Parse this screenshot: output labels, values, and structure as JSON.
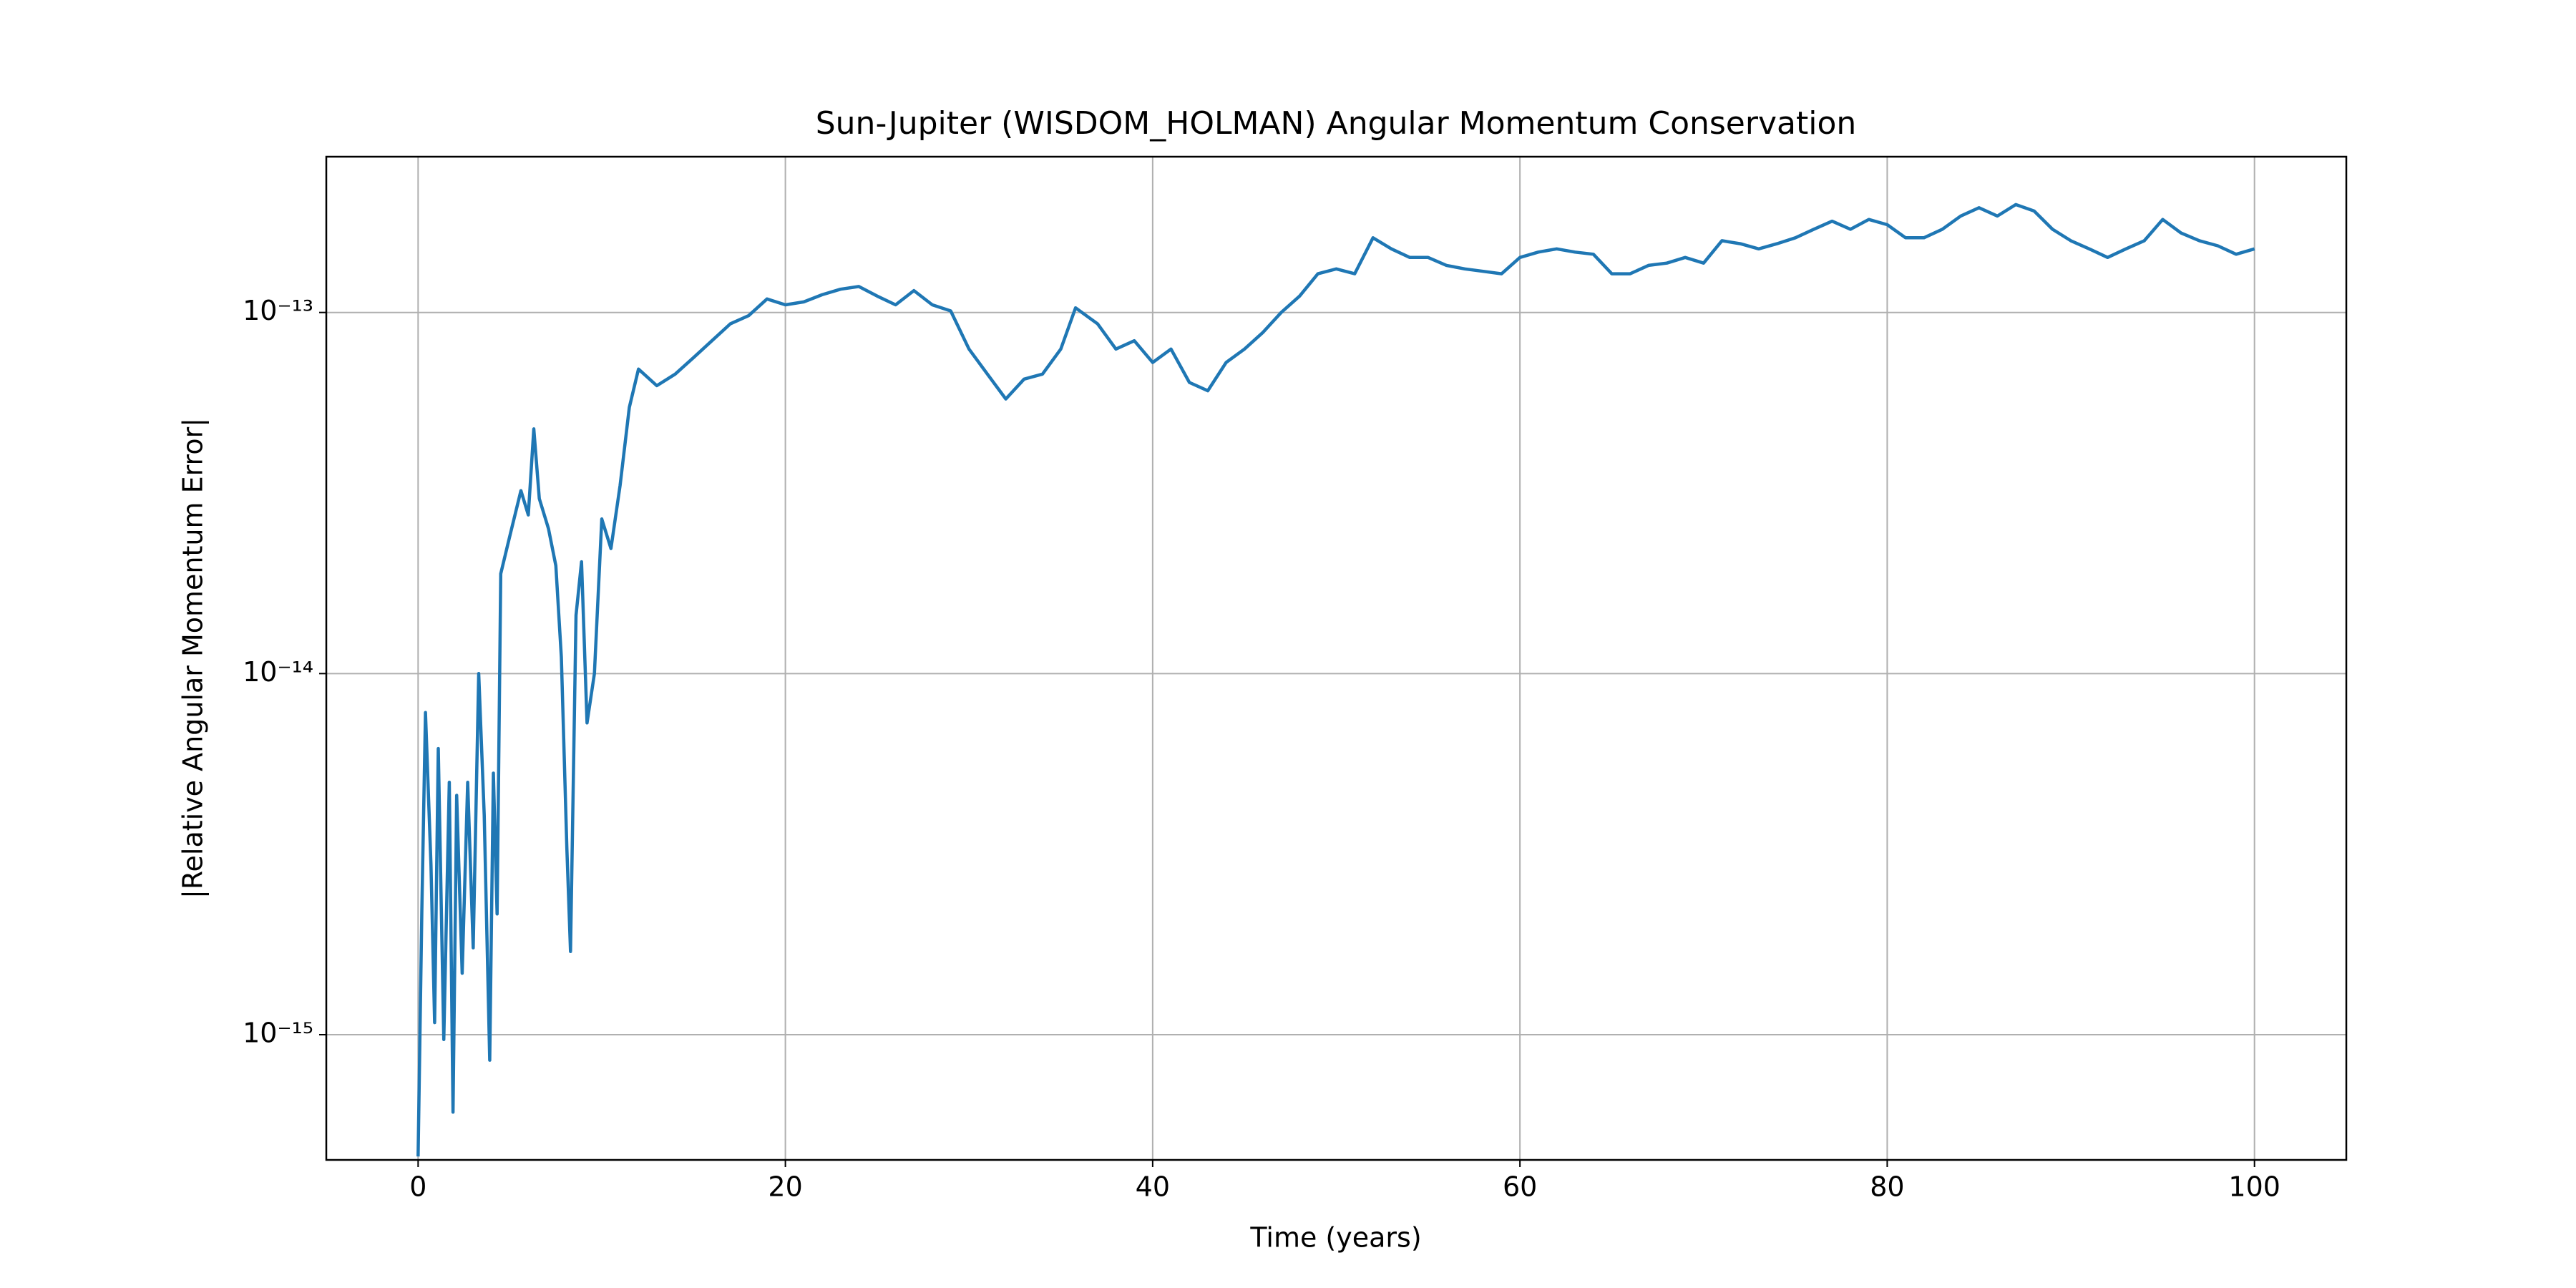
{
  "chart_data": {
    "type": "line",
    "title": "Sun-Jupiter (WISDOM_HOLMAN) Angular Momentum Conservation",
    "x_label": "Time (years)",
    "y_label": "|Relative Angular Momentum Error|",
    "yscale": "log",
    "grid": true,
    "color": "#1f77b4",
    "xlim": [
      -5,
      105
    ],
    "xticks": [
      0,
      20,
      40,
      60,
      80,
      100
    ],
    "ylim": [
      4.5e-16,
      2.7e-13
    ],
    "yticks": [
      {
        "value": 1e-15,
        "label": "10⁻¹⁵"
      },
      {
        "value": 1e-14,
        "label": "10⁻¹⁴"
      },
      {
        "value": 1e-13,
        "label": "10⁻¹³"
      }
    ],
    "x": [
      0,
      0.2,
      0.4,
      0.7,
      0.9,
      1.1,
      1.4,
      1.7,
      1.9,
      2.1,
      2.4,
      2.7,
      3.0,
      3.3,
      3.6,
      3.9,
      4.1,
      4.3,
      4.5,
      5.0,
      5.6,
      6.0,
      6.3,
      6.6,
      7.1,
      7.5,
      7.8,
      8.1,
      8.3,
      8.6,
      8.9,
      9.2,
      9.6,
      10.0,
      10.5,
      11.0,
      11.5,
      12,
      13,
      14,
      15,
      16,
      17,
      18,
      19,
      20,
      21,
      22,
      23,
      24,
      25,
      26,
      27,
      28,
      29,
      30,
      31,
      32,
      33,
      34,
      35,
      35.8,
      37,
      38,
      39,
      40,
      41,
      42,
      43,
      44,
      45,
      46,
      47,
      48,
      49,
      50,
      51,
      52,
      53,
      54,
      55,
      56,
      57,
      58,
      59,
      60,
      61,
      62,
      63,
      64,
      65,
      66,
      67,
      68,
      69,
      70,
      71,
      72,
      73,
      74,
      75,
      76,
      77,
      78,
      79,
      80,
      81,
      82,
      83,
      84,
      85,
      86,
      87,
      88,
      89,
      90,
      91,
      92,
      93,
      94,
      95,
      96,
      97,
      98,
      99,
      100
    ],
    "values": [
      4.6e-16,
      2.19e-15,
      7.8e-15,
      2.95e-15,
      1.08e-15,
      6.2e-15,
      9.7e-16,
      5e-15,
      6.1e-16,
      4.6e-15,
      1.48e-15,
      5e-15,
      1.74e-15,
      1e-14,
      4.06e-15,
      8.5e-16,
      5.3e-15,
      2.16e-15,
      1.89e-14,
      2.41e-14,
      3.21e-14,
      2.75e-14,
      4.76e-14,
      3.05e-14,
      2.52e-14,
      1.99e-14,
      1.11e-14,
      3.28e-15,
      1.7e-15,
      1.45e-14,
      2.04e-14,
      7.3e-15,
      1e-14,
      2.68e-14,
      2.22e-14,
      3.32e-14,
      5.46e-14,
      6.97e-14,
      6.27e-14,
      6.75e-14,
      7.5e-14,
      8.35e-14,
      9.3e-14,
      9.8e-14,
      1.09e-13,
      1.05e-13,
      1.07e-13,
      1.12e-13,
      1.16e-13,
      1.18e-13,
      1.11e-13,
      1.05e-13,
      1.15e-13,
      1.05e-13,
      1.01e-13,
      7.92e-14,
      6.75e-14,
      5.76e-14,
      6.54e-14,
      6.75e-14,
      7.92e-14,
      1.03e-13,
      9.3e-14,
      7.92e-14,
      8.35e-14,
      7.27e-14,
      7.92e-14,
      6.4e-14,
      6.07e-14,
      7.27e-14,
      7.92e-14,
      8.8e-14,
      1e-13,
      1.11e-13,
      1.28e-13,
      1.32e-13,
      1.28e-13,
      1.61e-13,
      1.5e-13,
      1.42e-13,
      1.42e-13,
      1.35e-13,
      1.32e-13,
      1.3e-13,
      1.28e-13,
      1.42e-13,
      1.47e-13,
      1.5e-13,
      1.47e-13,
      1.45e-13,
      1.28e-13,
      1.28e-13,
      1.35e-13,
      1.37e-13,
      1.42e-13,
      1.37e-13,
      1.58e-13,
      1.55e-13,
      1.5e-13,
      1.55e-13,
      1.61e-13,
      1.7e-13,
      1.79e-13,
      1.7e-13,
      1.81e-13,
      1.75e-13,
      1.61e-13,
      1.61e-13,
      1.7e-13,
      1.85e-13,
      1.95e-13,
      1.85e-13,
      1.99e-13,
      1.91e-13,
      1.7e-13,
      1.58e-13,
      1.5e-13,
      1.42e-13,
      1.5e-13,
      1.58e-13,
      1.81e-13,
      1.66e-13,
      1.58e-13,
      1.53e-13,
      1.45e-13,
      1.5e-13
    ]
  }
}
